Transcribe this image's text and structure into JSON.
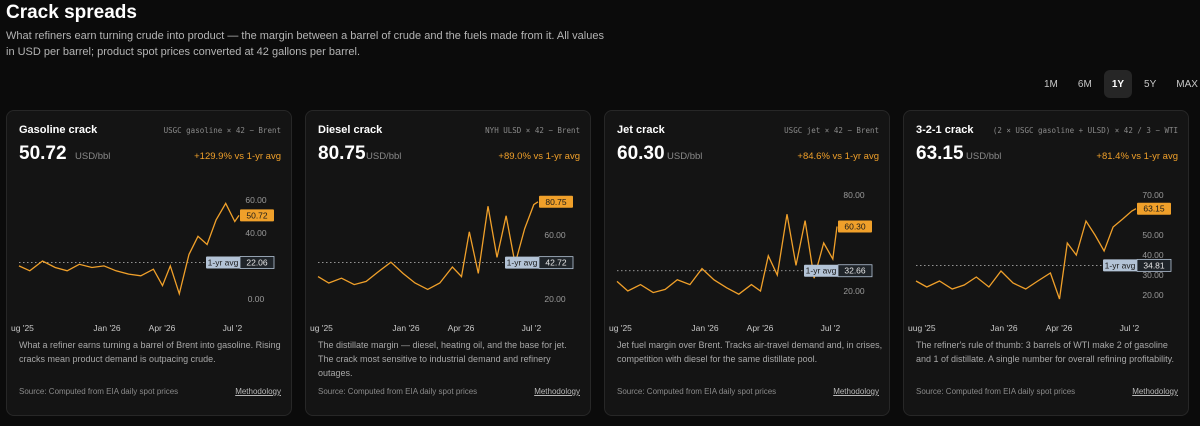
{
  "page": {
    "title": "Crack spreads",
    "description": "What refiners earn turning crude into product — the margin between a barrel of crude and the fuels made from it. All values in USD per barrel; product spot prices converted at 42 gallons per barrel."
  },
  "ranges": {
    "options": [
      "1M",
      "6M",
      "1Y",
      "5Y",
      "MAX"
    ],
    "selected": "1Y"
  },
  "colors": {
    "accent": "#f0a02a",
    "avg_tag": "#b3c3d6",
    "background": "#0b0b0b",
    "card": "#141414"
  },
  "cards": [
    {
      "name": "Gasoline crack",
      "formula": "USGC gasoline × 42 − Brent",
      "value": "50.72",
      "unit": "USD/bbl",
      "change": "+129.9% vs 1-yr avg",
      "description": "What a refiner earns turning a barrel of Brent into gasoline. Rising cracks mean product demand is outpacing crude.",
      "source": "Source: Computed from EIA daily spot prices",
      "methodology": "Methodology",
      "avg_label": "1-yr avg",
      "avg_value": "22.06",
      "current_label": "50.72"
    },
    {
      "name": "Diesel crack",
      "formula": "NYH ULSD × 42 − Brent",
      "value": "80.75",
      "unit": "USD/bbl",
      "change": "+89.0% vs 1-yr avg",
      "description": "The distillate margin — diesel, heating oil, and the base for jet. The crack most sensitive to industrial demand and refinery outages.",
      "source": "Source: Computed from EIA daily spot prices",
      "methodology": "Methodology",
      "avg_label": "1-yr avg",
      "avg_value": "42.72",
      "current_label": "80.75"
    },
    {
      "name": "Jet crack",
      "formula": "USGC jet × 42 − Brent",
      "value": "60.30",
      "unit": "USD/bbl",
      "change": "+84.6% vs 1-yr avg",
      "description": "Jet fuel margin over Brent. Tracks air-travel demand and, in crises, competition with diesel for the same distillate pool.",
      "source": "Source: Computed from EIA daily spot prices",
      "methodology": "Methodology",
      "avg_label": "1-yr avg",
      "avg_value": "32.66",
      "current_label": "60.30"
    },
    {
      "name": "3-2-1 crack",
      "formula": "(2 × USGC gasoline + ULSD) × 42 / 3 − WTI",
      "value": "63.15",
      "unit": "USD/bbl",
      "change": "+81.4% vs 1-yr avg",
      "description": "The refiner's rule of thumb: 3 barrels of WTI make 2 of gasoline and 1 of distillate. A single number for overall refining profitability.",
      "source": "Source: Computed from EIA daily spot prices",
      "methodology": "Methodology",
      "avg_label": "1-yr avg",
      "avg_value": "34.81",
      "current_label": "63.15"
    }
  ],
  "chart_data": [
    {
      "type": "line",
      "title": "Gasoline crack",
      "x_ticks": [
        "ug '25",
        "Jan '26",
        "Apr '26",
        "Jul '2"
      ],
      "x_range": [
        "2025-07-02",
        "2026-07-02"
      ],
      "y_ticks": [
        0,
        20,
        40,
        60
      ],
      "y_tick_labels": [
        "0.00",
        "",
        "40.00",
        "60.00"
      ],
      "ylim": [
        -5,
        68
      ],
      "average": 22.06,
      "last": 50.72,
      "series": [
        {
          "x": [
            "2025-07-02",
            "2025-07-20",
            "2025-08-10",
            "2025-08-31",
            "2025-09-20",
            "2025-10-10",
            "2025-10-31",
            "2025-11-20",
            "2025-12-10",
            "2025-12-31",
            "2026-01-20",
            "2026-02-10",
            "2026-02-25",
            "2026-03-10",
            "2026-03-25",
            "2026-04-10",
            "2026-04-25",
            "2026-05-10",
            "2026-05-25",
            "2026-06-10",
            "2026-06-25",
            "2026-07-02"
          ],
          "values": [
            20,
            17,
            23,
            19,
            17,
            21,
            19,
            20,
            17,
            15,
            14,
            18,
            8,
            20,
            3,
            27,
            38,
            33,
            48,
            58,
            47,
            50.72
          ]
        }
      ]
    },
    {
      "type": "line",
      "title": "Diesel crack",
      "x_ticks": [
        "ug '25",
        "Jan '26",
        "Apr '26",
        "Jul '2"
      ],
      "x_range": [
        "2025-07-02",
        "2026-07-02"
      ],
      "y_ticks": [
        20,
        40,
        60,
        80
      ],
      "y_tick_labels": [
        "20.00",
        "",
        "60.00",
        ""
      ],
      "ylim": [
        15,
        90
      ],
      "average": 42.72,
      "last": 80.75,
      "series": [
        {
          "x": [
            "2025-07-02",
            "2025-07-20",
            "2025-08-10",
            "2025-08-31",
            "2025-09-20",
            "2025-10-10",
            "2025-10-31",
            "2025-11-20",
            "2025-12-10",
            "2025-12-31",
            "2026-01-20",
            "2026-02-10",
            "2026-02-25",
            "2026-03-10",
            "2026-03-25",
            "2026-04-10",
            "2026-04-25",
            "2026-05-10",
            "2026-05-25",
            "2026-06-10",
            "2026-06-25",
            "2026-07-02"
          ],
          "values": [
            34,
            30,
            33,
            29,
            31,
            37,
            43,
            36,
            30,
            26,
            30,
            40,
            34,
            62,
            36,
            78,
            46,
            72,
            42,
            64,
            79,
            80.75
          ]
        }
      ]
    },
    {
      "type": "line",
      "title": "Jet crack",
      "x_ticks": [
        "ug '25",
        "Jan '26",
        "Apr '26",
        "Jul '2"
      ],
      "x_range": [
        "2025-07-02",
        "2026-07-02"
      ],
      "y_ticks": [
        20,
        40,
        60,
        80
      ],
      "y_tick_labels": [
        "20.00",
        "",
        "",
        "80.00"
      ],
      "ylim": [
        10,
        85
      ],
      "average": 32.66,
      "last": 60.3,
      "series": [
        {
          "x": [
            "2025-07-02",
            "2025-07-20",
            "2025-08-10",
            "2025-08-31",
            "2025-09-20",
            "2025-10-10",
            "2025-10-31",
            "2025-11-20",
            "2025-12-10",
            "2025-12-31",
            "2026-01-20",
            "2026-02-10",
            "2026-02-25",
            "2026-03-10",
            "2026-03-25",
            "2026-04-10",
            "2026-04-25",
            "2026-05-10",
            "2026-05-25",
            "2026-06-10",
            "2026-06-25",
            "2026-07-02"
          ],
          "values": [
            26,
            20,
            24,
            19,
            21,
            27,
            24,
            34,
            27,
            22,
            18,
            24,
            20,
            42,
            30,
            68,
            36,
            64,
            28,
            50,
            40,
            60.3
          ]
        }
      ]
    },
    {
      "type": "line",
      "title": "3-2-1 crack",
      "x_ticks": [
        "uug '25",
        "Jan '26",
        "Apr '26",
        "Jul '2"
      ],
      "x_range": [
        "2025-07-02",
        "2026-07-02"
      ],
      "y_ticks": [
        20,
        30,
        40,
        50,
        60,
        70
      ],
      "y_tick_labels": [
        "20.00",
        "30.00",
        "40.00",
        "50.00",
        "",
        "70.00"
      ],
      "ylim": [
        14,
        74
      ],
      "average": 34.81,
      "last": 63.15,
      "series": [
        {
          "x": [
            "2025-07-02",
            "2025-07-20",
            "2025-08-10",
            "2025-08-31",
            "2025-09-20",
            "2025-10-10",
            "2025-10-31",
            "2025-11-20",
            "2025-12-10",
            "2025-12-31",
            "2026-01-20",
            "2026-02-10",
            "2026-02-25",
            "2026-03-10",
            "2026-03-25",
            "2026-04-10",
            "2026-04-25",
            "2026-05-10",
            "2026-05-25",
            "2026-06-10",
            "2026-06-25",
            "2026-07-02"
          ],
          "values": [
            27,
            24,
            27,
            23,
            25,
            29,
            24,
            32,
            26,
            23,
            27,
            31,
            18,
            46,
            40,
            57,
            50,
            42,
            54,
            58,
            62,
            63.15
          ]
        }
      ]
    }
  ]
}
